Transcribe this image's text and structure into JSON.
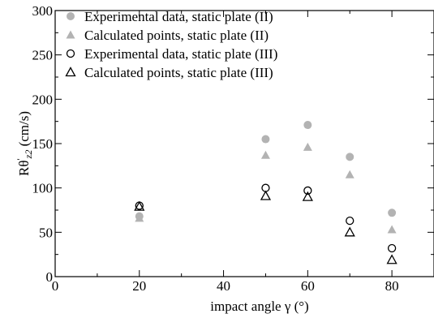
{
  "chart_data": {
    "type": "scatter",
    "title": "",
    "xlabel": "impact angle γ (°)",
    "ylabel_parts": {
      "main": "Rθ",
      "prime": "'",
      "sub": "z2",
      "unit": " (cm/s)"
    },
    "xlim": [
      0,
      90
    ],
    "ylim": [
      0,
      300
    ],
    "x_ticks": [
      0,
      20,
      40,
      60,
      80
    ],
    "x_tick_labels": [
      "0",
      "20",
      "40",
      "60",
      "80"
    ],
    "y_ticks": [
      0,
      50,
      100,
      150,
      200,
      250,
      300
    ],
    "y_tick_labels": [
      "0",
      "50",
      "100",
      "150",
      "200",
      "250",
      "300"
    ],
    "grid": false,
    "legend_position": "top-left",
    "series": [
      {
        "name": "Experimental data, static plate (II)",
        "marker": "circle-filled",
        "color": "#b3b3b3",
        "points": [
          [
            20,
            68
          ],
          [
            50,
            155
          ],
          [
            60,
            171
          ],
          [
            70,
            135
          ],
          [
            80,
            72
          ]
        ]
      },
      {
        "name": "Calculated points,  static plate (II)",
        "marker": "triangle-filled",
        "color": "#b3b3b3",
        "points": [
          [
            20,
            66
          ],
          [
            50,
            137
          ],
          [
            60,
            146
          ],
          [
            70,
            115
          ],
          [
            80,
            53
          ]
        ]
      },
      {
        "name": "Experimental data, static plate (III)",
        "marker": "circle-open",
        "color": "#000000",
        "points": [
          [
            20,
            80
          ],
          [
            50,
            100
          ],
          [
            60,
            97
          ],
          [
            70,
            63
          ],
          [
            80,
            32
          ]
        ]
      },
      {
        "name": "Calculated points,  static plate (III)",
        "marker": "triangle-open",
        "color": "#000000",
        "points": [
          [
            20,
            79
          ],
          [
            50,
            91
          ],
          [
            60,
            90
          ],
          [
            70,
            50
          ],
          [
            80,
            19
          ]
        ]
      }
    ]
  }
}
